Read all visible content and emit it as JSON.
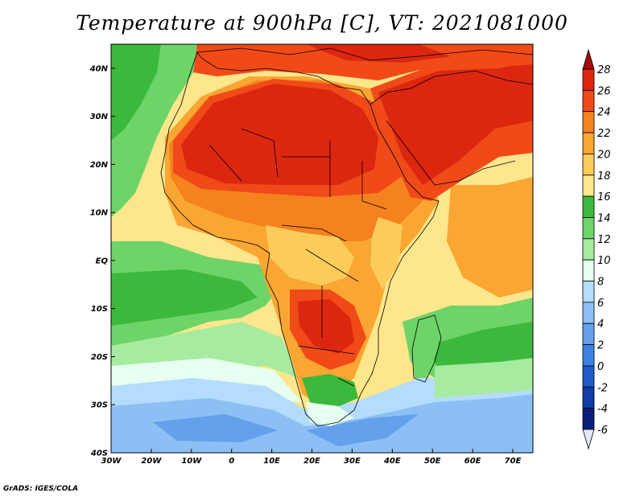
{
  "title": "Temperature at 900hPa [C], VT: 2021081000",
  "credit": "GrADS: IGES/COLA",
  "map": {
    "lon_ticks": [
      "30W",
      "20W",
      "10W",
      "0",
      "10E",
      "20E",
      "30E",
      "40E",
      "50E",
      "60E",
      "70E"
    ],
    "lat_ticks": [
      "40N",
      "30N",
      "20N",
      "10N",
      "EQ",
      "10S",
      "20S",
      "30S",
      "40S"
    ],
    "lon_range": [
      -30,
      75
    ],
    "lat_range": [
      -40,
      45
    ]
  },
  "colorbar": {
    "levels": [
      "28",
      "26",
      "24",
      "22",
      "20",
      "18",
      "16",
      "14",
      "12",
      "10",
      "8",
      "6",
      "4",
      "2",
      "0",
      "-2",
      "-4",
      "-6"
    ],
    "colors": [
      "#a50a0a",
      "#dc2610",
      "#f04a18",
      "#f5821f",
      "#faa632",
      "#fccc5a",
      "#fde68c",
      "#3cb93c",
      "#6ed468",
      "#a6eba0",
      "#e6fff0",
      "#b4dcfc",
      "#8cc0f5",
      "#64a0ec",
      "#3c82e0",
      "#1e5ac8",
      "#0f3ca5",
      "#0a1e78",
      "#e6e6ff"
    ]
  }
}
